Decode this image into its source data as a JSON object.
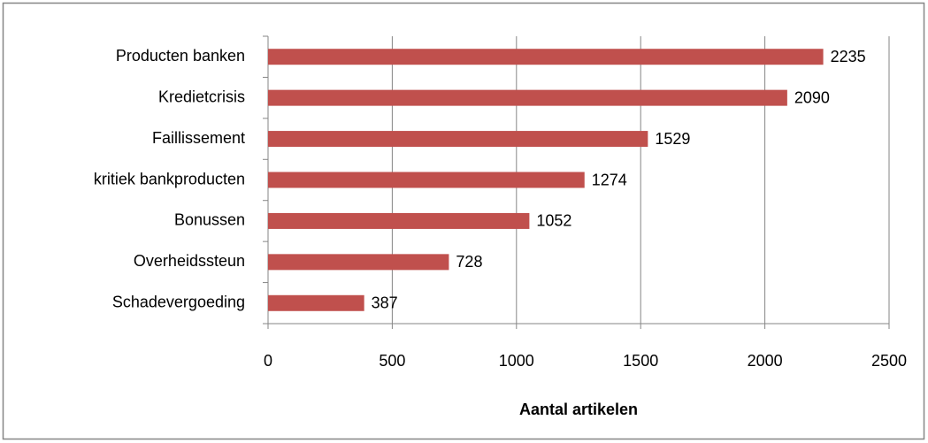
{
  "chart_data": {
    "type": "bar",
    "orientation": "horizontal",
    "x_label": "Aantal artikelen",
    "categories": [
      "Producten banken",
      "Kredietcrisis",
      "Faillissement",
      "kritiek bankproducten",
      "Bonussen",
      "Overheidssteun",
      "Schadevergoeding"
    ],
    "values": [
      2235,
      2090,
      1529,
      1274,
      1052,
      728,
      387
    ],
    "color": "#c0504d",
    "xlim": [
      0,
      2500
    ],
    "xticks": [
      0,
      500,
      1000,
      1500,
      2000,
      2500
    ],
    "grid": true
  }
}
